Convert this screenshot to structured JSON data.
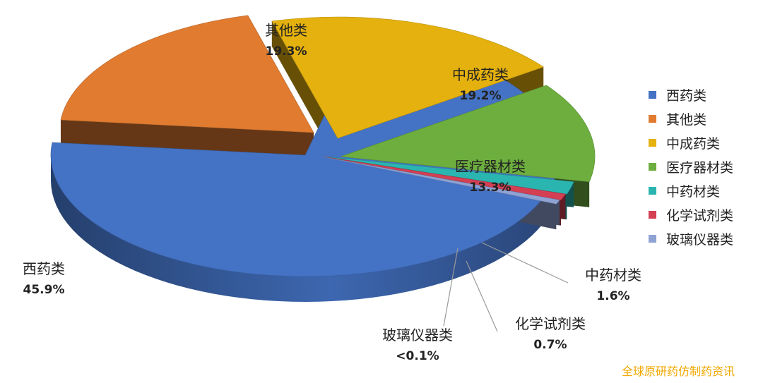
{
  "chart_data": {
    "type": "pie",
    "title": "",
    "categories": [
      "西药类",
      "其他类",
      "中成药类",
      "医疗器材类",
      "中药材类",
      "化学试剂类",
      "玻璃仪器类"
    ],
    "values": [
      45.9,
      19.3,
      19.2,
      13.3,
      1.6,
      0.7,
      0.1
    ],
    "value_labels": [
      "45.9%",
      "19.3%",
      "19.2%",
      "13.3%",
      "1.6%",
      "0.7%",
      "<0.1%"
    ],
    "colors": [
      "#4472C4",
      "#E07B30",
      "#E4B10E",
      "#6DAE3E",
      "#2BB5B0",
      "#D43F53",
      "#8FA2D4"
    ],
    "legend_position": "right",
    "style": "3d-exploded"
  },
  "watermark": "全球原研药仿制药资讯"
}
